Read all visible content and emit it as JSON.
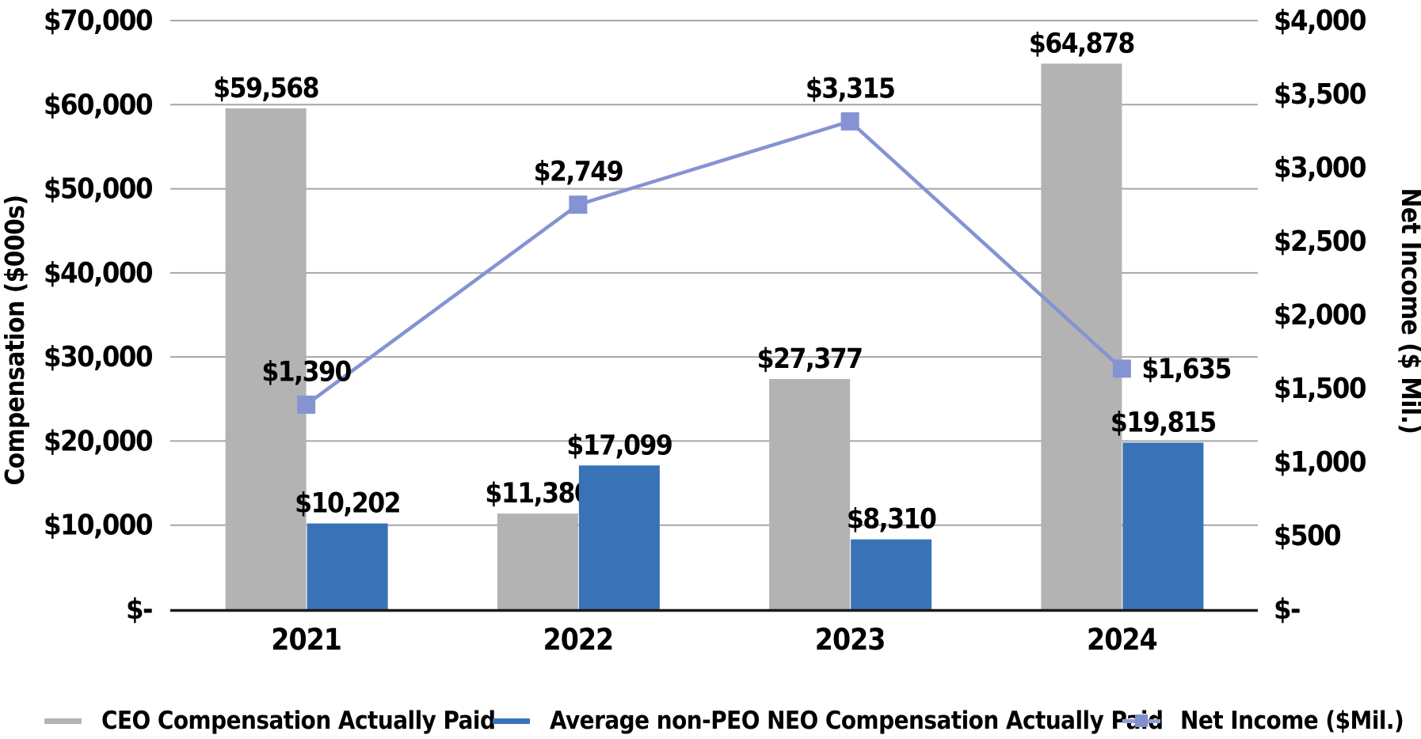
{
  "chart_data": {
    "type": "combo-bar-line",
    "title": "",
    "categories": [
      "2021",
      "2022",
      "2023",
      "2024"
    ],
    "series": [
      {
        "name": "CEO Compensation Actually Paid",
        "type": "bar",
        "axis": "left",
        "color": "#b3b3b3",
        "values": [
          59568,
          11380,
          27377,
          64878
        ],
        "labels": [
          "$59,568",
          "$11,380",
          "$27,377",
          "$64,878"
        ]
      },
      {
        "name": "Average non-PEO NEO Compensation Actually Paid",
        "type": "bar",
        "axis": "left",
        "color": "#3a72b8",
        "values": [
          10202,
          17099,
          8310,
          19815
        ],
        "labels": [
          "$10,202",
          "$17,099",
          "$8,310",
          "$19,815"
        ]
      },
      {
        "name": "Net Income ($Mil.)",
        "type": "line",
        "axis": "right",
        "color": "#8593d2",
        "marker": "square",
        "values": [
          1390,
          2749,
          3315,
          1635
        ],
        "labels": [
          "$1,390",
          "$2,749",
          "$3,315",
          "$1,635"
        ]
      }
    ],
    "ylabel_left": "Compensation ($000s)",
    "ylabel_right": "Net Income ($ Mil.)",
    "xlabel": "",
    "axis_left": {
      "min": 0,
      "max": 70000,
      "step": 10000,
      "tick_labels": [
        "$-",
        "$10,000",
        "$20,000",
        "$30,000",
        "$40,000",
        "$50,000",
        "$60,000",
        "$70,000"
      ]
    },
    "axis_right": {
      "min": 0,
      "max": 4000,
      "step": 500,
      "tick_labels": [
        "$-",
        "$500",
        "$1,000",
        "$1,500",
        "$2,000",
        "$2,500",
        "$3,000",
        "$3,500",
        "$4,000"
      ]
    },
    "grid": true,
    "gridline_color": "#a6a6a6",
    "axis_line_color": "#1a1a1a",
    "legend_position": "bottom"
  }
}
